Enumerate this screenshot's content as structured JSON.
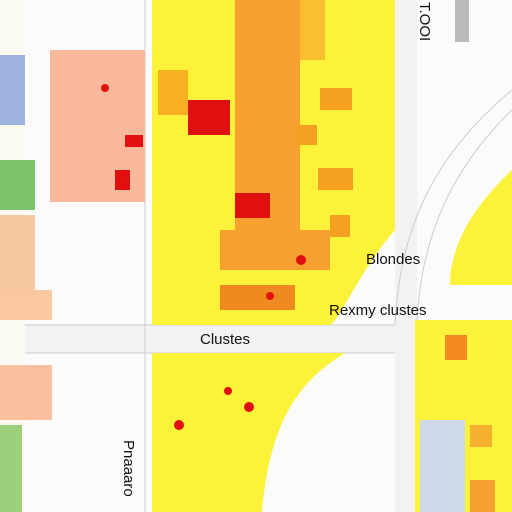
{
  "map": {
    "labels": {
      "north": "Blondes",
      "east": "Rexmy clustes",
      "center": "Clustes",
      "top_right": "T.OOI",
      "bottom_left": "Pnaaaro"
    }
  }
}
